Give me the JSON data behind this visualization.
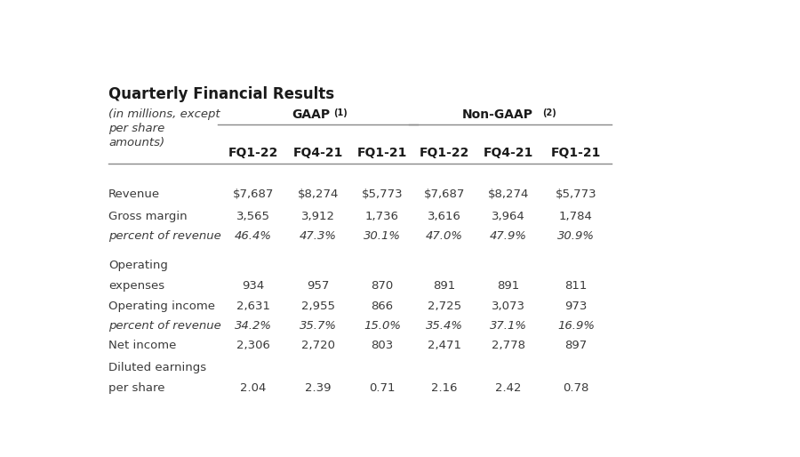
{
  "title": "Quarterly Financial Results",
  "rows": [
    {
      "label": "Revenue",
      "label2": "",
      "italic": false,
      "values": [
        "$7,687",
        "$8,274",
        "$5,773",
        "$7,687",
        "$8,274",
        "$5,773"
      ]
    },
    {
      "label": "Gross margin",
      "label2": "",
      "italic": false,
      "values": [
        "3,565",
        "3,912",
        "1,736",
        "3,616",
        "3,964",
        "1,784"
      ]
    },
    {
      "label": "percent of revenue",
      "label2": "",
      "italic": true,
      "values": [
        "46.4%",
        "47.3%",
        "30.1%",
        "47.0%",
        "47.9%",
        "30.9%"
      ]
    },
    {
      "label": "Operating",
      "label2": "expenses",
      "italic": false,
      "values": [
        "934",
        "957",
        "870",
        "891",
        "891",
        "811"
      ]
    },
    {
      "label": "Operating income",
      "label2": "",
      "italic": false,
      "values": [
        "2,631",
        "2,955",
        "866",
        "2,725",
        "3,073",
        "973"
      ]
    },
    {
      "label": "percent of revenue",
      "label2": "",
      "italic": true,
      "values": [
        "34.2%",
        "35.7%",
        "15.0%",
        "35.4%",
        "37.1%",
        "16.9%"
      ]
    },
    {
      "label": "Net income",
      "label2": "",
      "italic": false,
      "values": [
        "2,306",
        "2,720",
        "803",
        "2,471",
        "2,778",
        "897"
      ]
    },
    {
      "label": "Diluted earnings",
      "label2": "per share",
      "italic": false,
      "values": [
        "2.04",
        "2.39",
        "0.71",
        "2.16",
        "2.42",
        "0.78"
      ]
    }
  ],
  "col_headers": [
    "FQ1-22",
    "FQ4-21",
    "FQ1-21",
    "FQ1-22",
    "FQ4-21",
    "FQ1-21"
  ],
  "bg_color": "#ffffff",
  "text_color": "#3a3a3a",
  "header_color": "#1a1a1a",
  "line_color": "#888888"
}
